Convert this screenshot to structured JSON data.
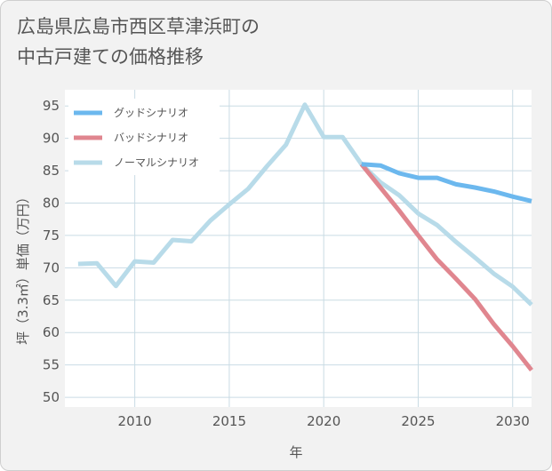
{
  "title_lines": [
    "広島県広島市西区草津浜町の",
    "中古戸建ての価格推移"
  ],
  "chart_data": {
    "type": "line",
    "title": "広島県広島市西区草津浜町の中古戸建ての価格推移",
    "xlabel": "年",
    "ylabel": "坪（3.3㎡）単価（万円）",
    "xlim": [
      2006.3,
      2031
    ],
    "ylim": [
      48.5,
      97.5
    ],
    "x_ticks": [
      2010,
      2015,
      2020,
      2025,
      2030
    ],
    "y_ticks": [
      50,
      55,
      60,
      65,
      70,
      75,
      80,
      85,
      90,
      95
    ],
    "grid": true,
    "legend_position": "top-left",
    "series": [
      {
        "name": "グッドシナリオ",
        "color": "#6cb8ee",
        "x": [
          2022,
          2023,
          2024,
          2025,
          2026,
          2027,
          2028,
          2029,
          2030,
          2031
        ],
        "y": [
          86.0,
          85.8,
          84.6,
          83.9,
          83.9,
          82.9,
          82.4,
          81.8,
          81.0,
          80.3
        ]
      },
      {
        "name": "バッドシナリオ",
        "color": "#e0868f",
        "x": [
          2022,
          2023,
          2024,
          2025,
          2026,
          2027,
          2028,
          2029,
          2030,
          2031
        ],
        "y": [
          86.0,
          82.4,
          78.8,
          75.0,
          71.3,
          68.3,
          65.2,
          61.3,
          57.9,
          54.2
        ]
      },
      {
        "name": "ノーマルシナリオ",
        "color": "#b8dbe9",
        "x": [
          2007,
          2008,
          2009,
          2010,
          2011,
          2012,
          2013,
          2014,
          2015,
          2016,
          2017,
          2018,
          2019,
          2020,
          2021,
          2022,
          2023,
          2024,
          2025,
          2026,
          2027,
          2028,
          2029,
          2030,
          2031
        ],
        "y": [
          70.6,
          70.7,
          67.2,
          71.0,
          70.8,
          74.3,
          74.1,
          77.3,
          79.8,
          82.2,
          85.7,
          89.0,
          95.2,
          90.2,
          90.2,
          86.0,
          83.2,
          81.2,
          78.4,
          76.6,
          74.0,
          71.6,
          69.1,
          67.1,
          64.3
        ]
      }
    ]
  }
}
